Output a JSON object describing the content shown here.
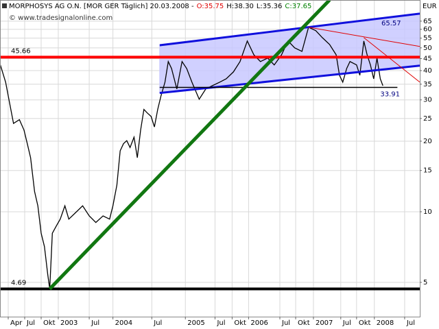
{
  "chart_data": {
    "type": "line",
    "title": "MORPHOSYS AG O.N. [MOR GER Täglich] 20.03.2008 -",
    "ohlc": [
      {
        "text": "O:35.75",
        "color": "#e00000"
      },
      {
        "text": "H:38.30",
        "color": "#000000"
      },
      {
        "text": "L:35.36",
        "color": "#000000"
      },
      {
        "text": "C:37.65",
        "color": "#008000"
      }
    ],
    "source": "© www.tradesignalonline.com",
    "currency": "EUR",
    "log_scale": true,
    "grid": true,
    "ylim": [
      3.57,
      80
    ],
    "yticks": [
      5,
      10,
      15,
      20,
      25,
      30,
      35,
      40,
      45,
      50,
      55,
      60,
      65
    ],
    "xlim": [
      2002.125,
      2008.5
    ],
    "xticks": [
      {
        "value": 2002.25,
        "label": "Apr"
      },
      {
        "value": 2002.5,
        "label": "Jul"
      },
      {
        "value": 2002.75,
        "label": "Okt"
      },
      {
        "value": 2003.01,
        "label": "2003"
      },
      {
        "value": 2003.48,
        "label": "Jul"
      },
      {
        "value": 2003.84,
        "label": "2004"
      },
      {
        "value": 2004.43,
        "label": "Jul"
      },
      {
        "value": 2004.94,
        "label": "2005"
      },
      {
        "value": 2005.39,
        "label": "Jul"
      },
      {
        "value": 2005.65,
        "label": "Okt"
      },
      {
        "value": 2005.9,
        "label": "2006"
      },
      {
        "value": 2006.375,
        "label": "Jul"
      },
      {
        "value": 2006.615,
        "label": "Okt"
      },
      {
        "value": 2006.885,
        "label": "2007"
      },
      {
        "value": 2007.3,
        "label": "Jul"
      },
      {
        "value": 2007.54,
        "label": "Okt"
      },
      {
        "value": 2007.81,
        "label": "2008"
      },
      {
        "value": 2008.27,
        "label": "Jul"
      }
    ],
    "series": [
      {
        "color": "#000000",
        "x": [
          2002.13,
          2002.21,
          2002.27,
          2002.33,
          2002.42,
          2002.49,
          2002.54,
          2002.59,
          2002.65,
          2002.7,
          2002.75,
          2002.8,
          2002.85,
          2002.88,
          2002.92,
          2002.98,
          2003.04,
          2003.11,
          2003.17,
          2003.27,
          2003.38,
          2003.48,
          2003.58,
          2003.69,
          2003.79,
          2003.84,
          2003.9,
          2003.95,
          2004.0,
          2004.05,
          2004.1,
          2004.16,
          2004.21,
          2004.26,
          2004.31,
          2004.36,
          2004.42,
          2004.47,
          2004.52,
          2004.57,
          2004.63,
          2004.68,
          2004.73,
          2004.81,
          2004.89,
          2004.96,
          2005.04,
          2005.15,
          2005.25,
          2005.35,
          2005.46,
          2005.56,
          2005.67,
          2005.77,
          2005.88,
          2005.98,
          2006.08,
          2006.19,
          2006.29,
          2006.4,
          2006.5,
          2006.6,
          2006.71,
          2006.81,
          2006.92,
          2007.02,
          2007.13,
          2007.23,
          2007.28,
          2007.33,
          2007.39,
          2007.44,
          2007.54,
          2007.59,
          2007.65,
          2007.7,
          2007.75,
          2007.8,
          2007.85,
          2007.9,
          2007.94
        ],
        "values": [
          42.3,
          35.7,
          29.2,
          23.8,
          24.7,
          22.3,
          19.5,
          17.0,
          12.2,
          10.6,
          8.1,
          7.1,
          5.4,
          4.69,
          8.1,
          8.7,
          9.3,
          10.6,
          9.3,
          9.9,
          10.6,
          9.6,
          9.0,
          9.6,
          9.3,
          10.6,
          13.0,
          18.2,
          19.5,
          20.1,
          18.8,
          20.8,
          17.0,
          22.3,
          27.3,
          26.4,
          25.5,
          23.0,
          27.3,
          31.2,
          35.7,
          43.7,
          40.8,
          33.4,
          43.7,
          40.8,
          35.7,
          30.2,
          33.4,
          34.5,
          35.7,
          36.9,
          39.5,
          43.7,
          53.5,
          46.7,
          43.7,
          45.2,
          42.3,
          46.7,
          53.5,
          50.0,
          48.3,
          61.2,
          59.2,
          55.3,
          51.7,
          46.7,
          38.2,
          35.7,
          40.8,
          43.7,
          42.3,
          38.2,
          53.5,
          46.7,
          42.3,
          36.9,
          45.2,
          36.9,
          34.5
        ]
      }
    ],
    "levels": [
      {
        "value": 45.66,
        "color": "#ff0000",
        "width": 4
      },
      {
        "value": 4.69,
        "color": "#000000",
        "width": 4
      },
      {
        "value": 33.91,
        "color": "#000000",
        "width": 1.5,
        "x": [
          2004.55,
          2008.16
        ]
      }
    ],
    "channel": {
      "color": "#1010dd",
      "fill": "#c8c8ff",
      "upper": {
        "x": [
          2004.55,
          2008.5
        ],
        "y": [
          51.3,
          70.0
        ]
      },
      "lower": {
        "x": [
          2004.55,
          2008.5
        ],
        "y": [
          32.1,
          42.0
        ]
      }
    },
    "trendlines": [
      {
        "x": [
          2002.88,
          2007.13
        ],
        "y": [
          4.69,
          80
        ],
        "color": "#117711",
        "width": 5
      },
      {
        "x": [
          2006.81,
          2008.5
        ],
        "y": [
          61.2,
          50.7
        ],
        "color": "#e00000",
        "width": 1
      },
      {
        "x": [
          2007.65,
          2008.5
        ],
        "y": [
          55.3,
          35.7
        ],
        "color": "#e00000",
        "width": 1
      }
    ],
    "annotations": [
      "65.57"
    ]
  }
}
